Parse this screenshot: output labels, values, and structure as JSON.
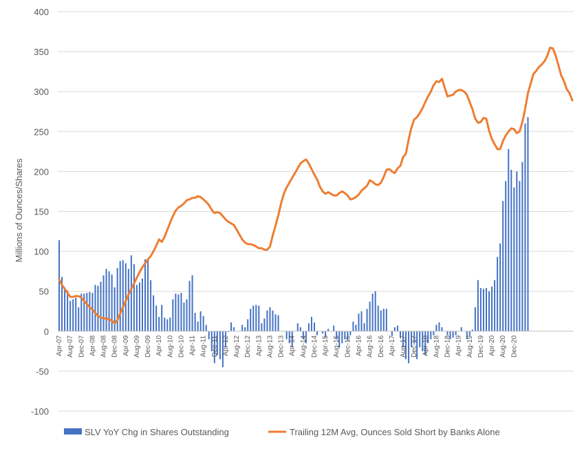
{
  "chart_data": {
    "type": "bar+line",
    "ylabel": "Millions of Ounces/Shares",
    "ylim": [
      -100,
      400
    ],
    "yticks": [
      "-100",
      "-50",
      "0",
      "50",
      "100",
      "150",
      "200",
      "250",
      "300",
      "350",
      "400"
    ],
    "grid": "horizontal",
    "legend_position": "bottom",
    "x_tick_labels": [
      "Apr-07",
      "Aug-07",
      "Dec-07",
      "Apr-08",
      "Aug-08",
      "Dec-08",
      "Apr-09",
      "Aug-09",
      "Dec-09",
      "Apr-10",
      "Aug-10",
      "Dec-10",
      "Apr-11",
      "Aug-11",
      "Dec-11",
      "Apr-12",
      "Aug-12",
      "Dec-12",
      "Apr-13",
      "Aug-13",
      "Dec-13",
      "Apr-14",
      "Aug-14",
      "Dec-14",
      "Apr-15",
      "Aug-15",
      "Dec-15",
      "Apr-16",
      "Aug-16",
      "Dec-16",
      "Apr-17",
      "Aug-17",
      "Dec-17",
      "Apr-18",
      "Aug-18",
      "Dec-18",
      "Apr-19",
      "Aug-19",
      "Dec-19",
      "Apr-20",
      "Aug-20",
      "Dec-20"
    ],
    "series": [
      {
        "name": "SLV YoY Chg in Shares Outstanding",
        "type": "bar",
        "color": "#4472C4",
        "values": [
          114,
          68,
          55,
          51,
          38,
          40,
          42,
          30,
          47,
          47,
          48,
          49,
          48,
          58,
          57,
          62,
          70,
          78,
          75,
          71,
          55,
          79,
          88,
          89,
          85,
          78,
          95,
          84,
          58,
          61,
          66,
          90,
          89,
          64,
          45,
          32,
          18,
          33,
          17,
          15,
          17,
          40,
          47,
          46,
          48,
          36,
          40,
          63,
          70,
          23,
          12,
          25,
          19,
          8,
          -10,
          -25,
          -40,
          -30,
          -35,
          -45,
          -20,
          -1,
          11,
          5,
          0,
          0,
          8,
          5,
          15,
          28,
          32,
          33,
          32,
          10,
          16,
          26,
          30,
          26,
          21,
          20,
          0,
          0,
          -10,
          -15,
          -20,
          0,
          10,
          5,
          -10,
          -15,
          10,
          18,
          11,
          -5,
          0,
          -3,
          -8,
          3,
          0,
          7,
          -10,
          -20,
          -15,
          -10,
          -12,
          -5,
          12,
          8,
          22,
          25,
          10,
          28,
          37,
          47,
          50,
          32,
          26,
          28,
          28,
          0,
          -6,
          5,
          7,
          -8,
          -20,
          -35,
          -40,
          -20,
          -15,
          -35,
          -20,
          -25,
          -30,
          -15,
          -10,
          -5,
          8,
          11,
          5,
          0,
          -5,
          -10,
          -8,
          -5,
          0,
          5,
          0,
          -10,
          -5,
          2,
          30,
          64,
          54,
          53,
          54,
          50,
          56,
          64,
          93,
          110,
          163,
          188,
          228,
          202,
          180,
          200,
          188,
          212,
          260,
          268
        ]
      },
      {
        "name": "Trailing 12M Avg, Ounces Sold Short by Banks Alone",
        "type": "line",
        "color": "#ED7D31",
        "values": [
          65,
          58,
          53,
          48,
          43,
          43,
          44,
          44,
          42,
          38,
          34,
          30,
          27,
          23,
          19,
          17,
          16,
          16,
          15,
          13,
          10,
          14,
          22,
          30,
          38,
          46,
          53,
          60,
          67,
          74,
          80,
          85,
          90,
          94,
          100,
          107,
          115,
          112,
          118,
          127,
          136,
          144,
          151,
          155,
          157,
          160,
          164,
          165,
          167,
          167,
          169,
          168,
          165,
          162,
          158,
          152,
          148,
          149,
          148,
          144,
          140,
          137,
          135,
          133,
          127,
          121,
          115,
          111,
          109,
          109,
          108,
          106,
          104,
          104,
          102,
          102,
          106,
          120,
          132,
          145,
          160,
          172,
          180,
          186,
          192,
          198,
          204,
          210,
          213,
          215,
          210,
          203,
          196,
          190,
          181,
          175,
          172,
          174,
          172,
          170,
          170,
          173,
          175,
          173,
          170,
          165,
          166,
          168,
          171,
          176,
          179,
          182,
          189,
          187,
          184,
          183,
          186,
          193,
          202,
          203,
          200,
          198,
          204,
          207,
          218,
          222,
          240,
          255,
          265,
          268,
          273,
          279,
          287,
          294,
          300,
          308,
          313,
          312,
          316,
          305,
          294,
          295,
          296,
          300,
          302,
          302,
          300,
          296,
          287,
          278,
          266,
          261,
          262,
          267,
          266,
          251,
          241,
          234,
          228,
          228,
          238,
          245,
          250,
          254,
          253,
          248,
          250,
          262,
          278,
          298,
          310,
          322,
          326,
          331,
          334,
          338,
          345,
          355,
          354,
          345,
          333,
          320,
          313,
          303,
          298,
          289
        ]
      }
    ]
  }
}
